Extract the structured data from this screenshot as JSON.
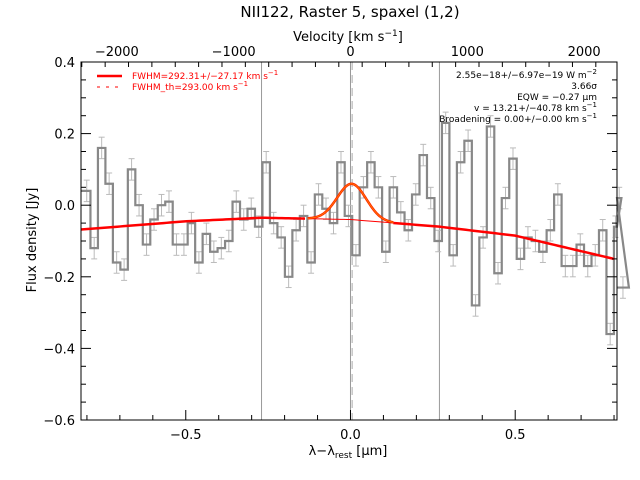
{
  "chart_data": {
    "type": "line",
    "title": "NII122, Raster 5, spaxel (1,2)",
    "xlabel": "λ−λ",
    "xlabel_sub": "rest",
    "xlabel_unit": " [μm]",
    "ylabel": "Flux density [Jy]",
    "top_xlabel": "Velocity [km s",
    "top_xlabel_sup": "−1",
    "top_xlabel_end": "]",
    "xlim": [
      -0.818,
      0.809
    ],
    "ylim": [
      -0.6,
      0.4
    ],
    "top_xlim": [
      -2975,
      3975
    ],
    "top_xlim_note": "velocity axis, km/s",
    "velocity_per_um": 2820,
    "x_ticks": [
      -0.5,
      0.0,
      0.5
    ],
    "x_tick_labels": [
      "−0.5",
      "0.0",
      "0.5"
    ],
    "y_ticks": [
      0.4,
      0.2,
      0.0,
      -0.2,
      -0.4,
      -0.6
    ],
    "y_tick_labels": [
      "0.4",
      "0.2",
      "0.0",
      "−0.2",
      "−0.4",
      "−0.6"
    ],
    "top_ticks": [
      -2000,
      -1000,
      0,
      1000,
      2000
    ],
    "top_tick_labels": [
      "−2000",
      "−1000",
      "0",
      "1000",
      "2000"
    ],
    "grid": false,
    "legend_position": "top-left",
    "legend": [
      {
        "label": "FWHM=292.31+/−27.17 km s",
        "sup": "−1",
        "style": "solid",
        "color": "#ff0000"
      },
      {
        "label": "FWHM_th=293.00 km s",
        "sup": "−1",
        "style": "dashed",
        "color": "#ff0000"
      }
    ],
    "annotations": [
      {
        "text": "2.55e−18+/−6.97e−19 W m",
        "sup": "−2"
      },
      {
        "text": "3.66σ",
        "sup": ""
      },
      {
        "text": "EQW = −0.27 μm",
        "sup": ""
      },
      {
        "text": "v = 13.21+/−40.78 km s",
        "sup": "−1"
      },
      {
        "text": "Broadening = 0.00+/−0.00 km s",
        "sup": "−1"
      }
    ],
    "vertical_lines": [
      {
        "x": -0.27,
        "style": "solid",
        "color": "#999999"
      },
      {
        "x": 0.0,
        "style": "solid",
        "color": "#999999"
      },
      {
        "x": 0.005,
        "style": "dashed",
        "color": "#aaaaaa"
      },
      {
        "x": 0.27,
        "style": "solid",
        "color": "#999999"
      }
    ],
    "spectrum": {
      "name": "flux",
      "style": "histogram",
      "color": "#888888",
      "bin_width": 0.0227,
      "x_start": -0.812,
      "values": [
        0.04,
        -0.12,
        0.16,
        0.06,
        -0.16,
        -0.18,
        0.1,
        0.0,
        -0.11,
        -0.04,
        0.0,
        0.01,
        -0.11,
        -0.11,
        -0.05,
        -0.16,
        -0.08,
        -0.13,
        -0.12,
        -0.1,
        0.01,
        -0.04,
        -0.01,
        -0.06,
        0.12,
        -0.05,
        -0.09,
        -0.2,
        -0.07,
        -0.03,
        -0.16,
        0.03,
        -0.01,
        -0.05,
        0.12,
        -0.03,
        -0.14,
        0.05,
        0.12,
        0.05,
        -0.13,
        0.05,
        -0.02,
        -0.07,
        0.03,
        0.14,
        0.02,
        -0.1,
        0.23,
        -0.14,
        0.12,
        0.18,
        -0.28,
        -0.09,
        0.22,
        -0.19,
        0.02,
        0.13,
        -0.15,
        -0.09,
        -0.1,
        -0.13,
        -0.07,
        0.03,
        -0.17,
        -0.17,
        -0.11,
        -0.17,
        -0.14,
        -0.07,
        -0.36,
        -0.06,
        0.02,
        -0.23
      ],
      "error": 0.03,
      "error_color": "#bbbbbb"
    },
    "continuum": {
      "name": "continuum fit",
      "color": "#ff0000",
      "x": [
        -0.818,
        -0.5,
        -0.27,
        0.0,
        0.27,
        0.5,
        0.809
      ],
      "y": [
        -0.068,
        -0.045,
        -0.035,
        -0.04,
        -0.06,
        -0.085,
        -0.152
      ]
    },
    "line_fit": {
      "name": "gaussian fit",
      "color": "#ff0000",
      "center": 0.004,
      "fwhm_um": 0.104,
      "amplitude": 0.1,
      "range": [
        -0.13,
        0.13
      ]
    }
  }
}
